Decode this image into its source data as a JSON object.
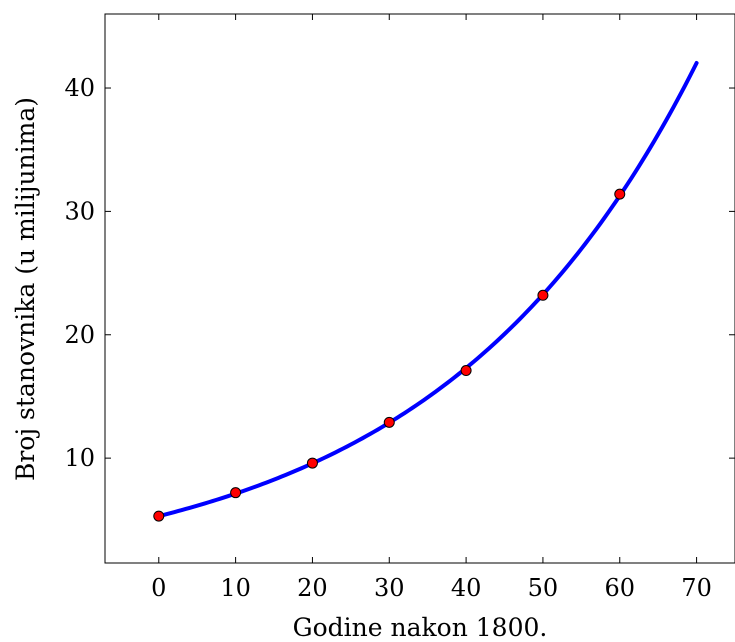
{
  "chart_data": {
    "type": "line",
    "title": "",
    "xlabel": "Godine nakon 1800.",
    "ylabel": "Broj stanovnika (u milijunima)",
    "xlim": [
      -7,
      75
    ],
    "ylim": [
      1.5,
      46
    ],
    "xticks": [
      0,
      10,
      20,
      30,
      40,
      50,
      60,
      70
    ],
    "yticks": [
      10,
      20,
      30,
      40
    ],
    "grid": false,
    "series": [
      {
        "kind": "curve",
        "color": "#0000ff",
        "model": {
          "form": "a*exp(b*x)",
          "a": 5.3,
          "b": 0.02958
        },
        "x_range": [
          0,
          70
        ]
      },
      {
        "kind": "points",
        "color": "#ff0000",
        "edge_color": "#000000",
        "x": [
          0,
          10,
          20,
          30,
          40,
          50,
          60
        ],
        "y": [
          5.3,
          7.2,
          9.6,
          12.9,
          17.1,
          23.2,
          31.4
        ]
      }
    ]
  }
}
